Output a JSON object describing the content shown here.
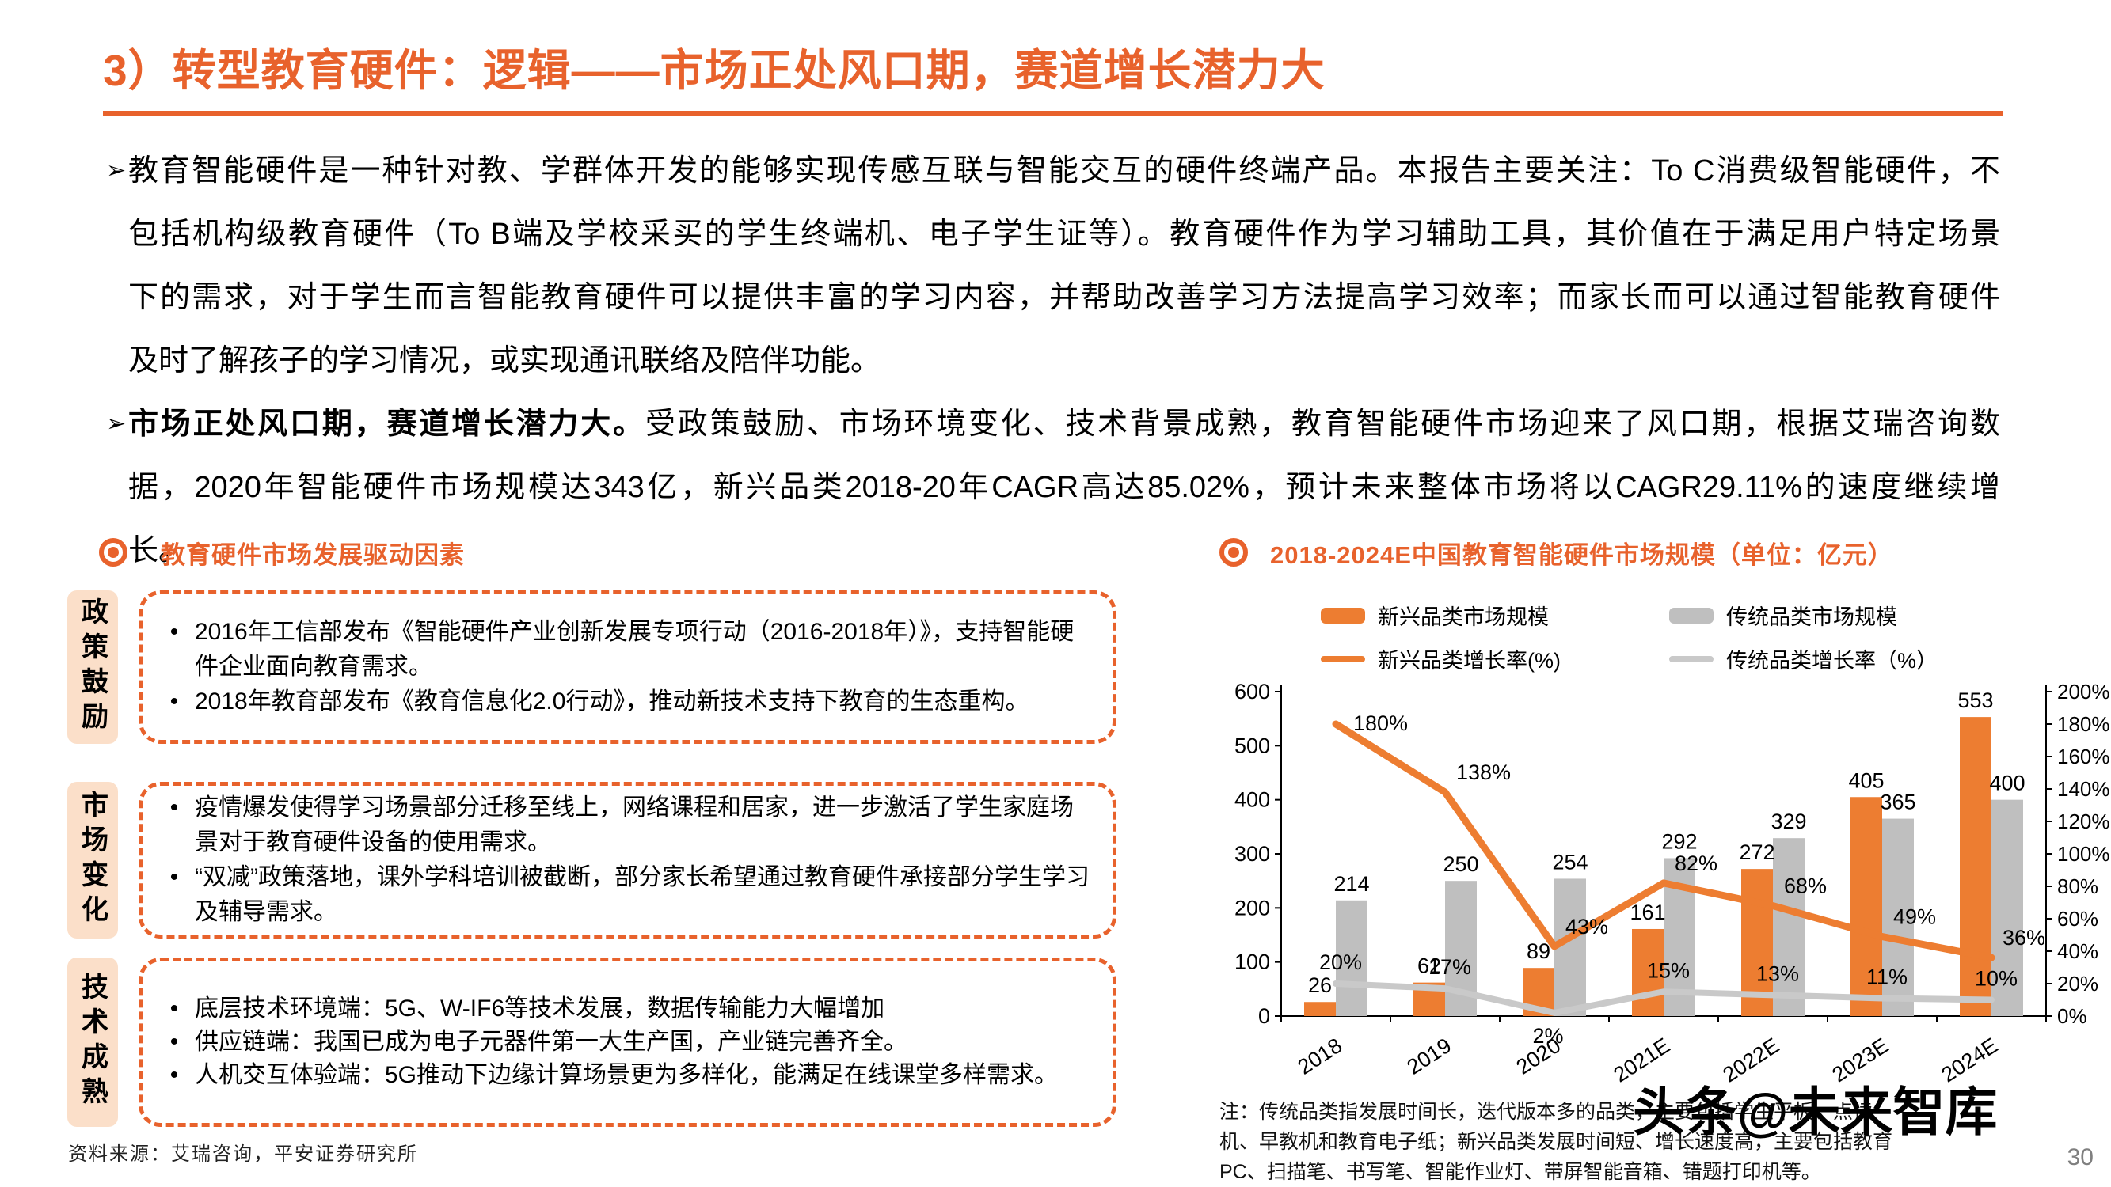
{
  "page": {
    "title": "3）转型教育硬件：逻辑——市场正处风口期，赛道增长潜力大",
    "bullet_marker": "➢",
    "item_marker": "•",
    "source": "资料来源：艾瑞咨询，平安证券研究所",
    "watermark": "头条@未来智库",
    "page_number": "30"
  },
  "colors": {
    "accent_orange": "#E8622C",
    "bar_orange": "#ED7D31",
    "bar_gray": "#BFBFBF",
    "line_gray": "#C9C9C9",
    "label_bg_peach": "#FBDFC9"
  },
  "bullets": {
    "para1": {
      "lines": [
        "教育智能硬件是一种针对教、学群体开发的能够实现传感互联与智能交互的硬件终端产品。本报告主要关注：To C消费级智能硬件，不",
        "包括机构级教育硬件（To B端及学校采买的学生终端机、电子学生证等）。教育硬件作为学习辅助工具，其价值在于满足用户特定场景",
        "下的需求，对于学生而言智能教育硬件可以提供丰富的学习内容，并帮助改善学习方法提高学习效率；而家长而可以通过智能教育硬件",
        "及时了解孩子的学习情况，或实现通讯联络及陪伴功能。"
      ]
    },
    "para2": {
      "lead": "市场正处风口期，赛道增长潜力大。",
      "line1_rest": "受政策鼓励、市场环境变化、技术背景成熟，教育智能硬件市场迎来了风口期，根据艾瑞咨询数",
      "line2": "据，2020年智能硬件市场规模达343亿，新兴品类2018-20年CAGR高达85.02%，预计未来整体市场将以CAGR29.11%的速度继续增",
      "line3": "长。"
    }
  },
  "drivers": {
    "title": "教育硬件市场发展驱动因素",
    "groups": [
      {
        "label": "政策鼓励",
        "items": [
          "2016年工信部发布《智能硬件产业创新发展专项行动（2016-2018年）》，支持智能硬件企业面向教育需求。",
          "2018年教育部发布《教育信息化2.0行动》，推动新技术支持下教育的生态重构。"
        ]
      },
      {
        "label": "市场变化",
        "items": [
          "疫情爆发使得学习场景部分迁移至线上，网络课程和居家，进一步激活了学生家庭场景对于教育硬件设备的使用需求。",
          "“双减”政策落地，课外学科培训被截断，部分家长希望通过教育硬件承接部分学生学习及辅导需求。"
        ]
      },
      {
        "label": "技术成熟",
        "items": [
          "底层技术环境端：5G、W-IF6等技术发展，数据传输能力大幅增加",
          "供应链端：我国已成为电子元器件第一大生产国，产业链完善齐全。",
          "人机交互体验端：5G推动下边缘计算场景更为多样化，能满足在线课堂多样需求。"
        ]
      }
    ]
  },
  "chart": {
    "note_lines": [
      "注：传统品类指发展时间长，迭代版本多的品类，主要包括学生平板、点读",
      "机、早教机和教育电子纸；新兴品类发展时间短、增长速度高，主要包括教育",
      "PC、扫描笔、书写笔、智能作业灯、带屏智能音箱、错题打印机等。"
    ]
  },
  "chart_data": {
    "type": "bar",
    "title": "2018-2024E中国教育智能硬件市场规模（单位：亿元）",
    "categories": [
      "2018",
      "2019",
      "2020",
      "2021E",
      "2022E",
      "2023E",
      "2024E"
    ],
    "series": [
      {
        "name": "新兴品类市场规模",
        "type": "bar",
        "axis": "left",
        "color": "#ED7D31",
        "values": [
          26,
          62,
          89,
          161,
          272,
          405,
          553
        ]
      },
      {
        "name": "传统品类市场规模",
        "type": "bar",
        "axis": "left",
        "color": "#BFBFBF",
        "values": [
          214,
          250,
          254,
          292,
          329,
          365,
          400
        ]
      },
      {
        "name": "新兴品类增长率(%)",
        "type": "line",
        "axis": "right",
        "color": "#ED7D31",
        "values": [
          180,
          138,
          43,
          82,
          68,
          49,
          36
        ]
      },
      {
        "name": "传统品类增长率（%）",
        "type": "line",
        "axis": "right",
        "color": "#C9C9C9",
        "values": [
          20,
          17,
          2,
          15,
          13,
          11,
          10
        ]
      }
    ],
    "left_axis": {
      "min": 0,
      "max": 600,
      "step": 100
    },
    "right_axis": {
      "min": 0,
      "max": 200,
      "step": 20,
      "suffix": "%"
    },
    "legend_position": "top",
    "grid": false
  }
}
